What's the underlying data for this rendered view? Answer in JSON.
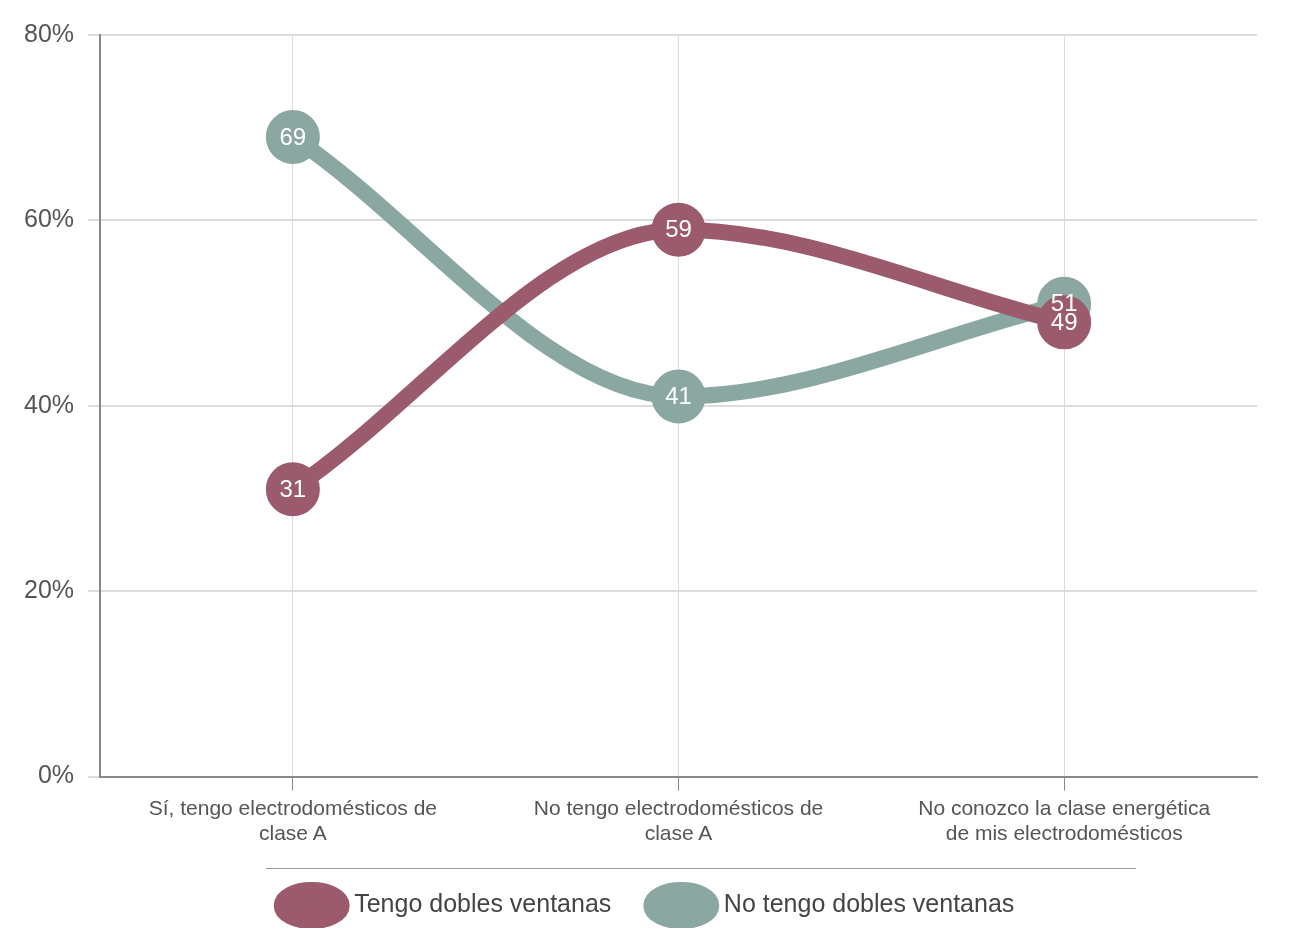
{
  "chart_data": {
    "type": "line",
    "categories": [
      "Sí, tengo electrodomésticos de clase A",
      "No tengo electrodomésticos de clase A",
      "No conozco la clase energética de mis electrodomésticos"
    ],
    "series": [
      {
        "name": "Tengo dobles ventanas",
        "color": "#9b5b6c",
        "values": [
          31,
          59,
          49
        ]
      },
      {
        "name": "No tengo dobles ventanas",
        "color": "#8aa8a1",
        "values": [
          69,
          41,
          51
        ]
      }
    ],
    "ylim": [
      0,
      80
    ],
    "yticks": [
      {
        "value": 0,
        "label": "0%"
      },
      {
        "value": 20,
        "label": "20%"
      },
      {
        "value": 40,
        "label": "40%"
      },
      {
        "value": 60,
        "label": "60%"
      },
      {
        "value": 80,
        "label": "80%"
      }
    ],
    "grid": true,
    "legend": "bottom",
    "marker": "circle",
    "line_style": "solid",
    "data_labels": true
  }
}
